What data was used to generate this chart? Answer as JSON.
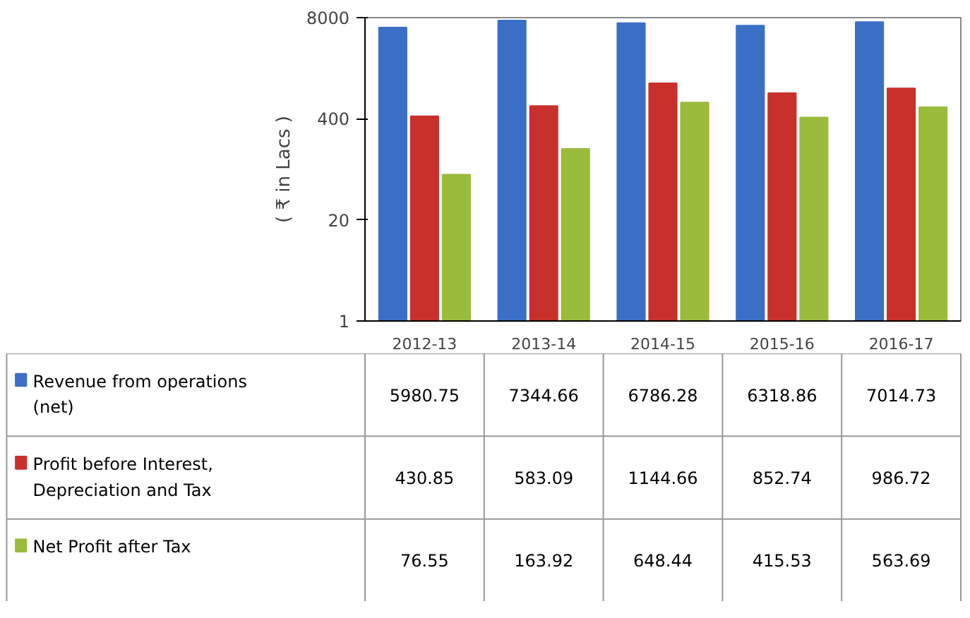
{
  "chart_data": {
    "type": "bar",
    "ylabel": "( ₹ in Lacs )",
    "log": true,
    "ylim": [
      1,
      8000
    ],
    "yticks": [
      1,
      20,
      400,
      8000
    ],
    "grid": false,
    "legend": "bottom",
    "categories": [
      "2012-13",
      "2013-14",
      "2014-15",
      "2015-16",
      "2016-17"
    ],
    "series": [
      {
        "name": "Revenue from operations (net)",
        "color": "#3b6fc6",
        "values": [
          5980.75,
          7344.66,
          6786.28,
          6318.86,
          7014.73
        ],
        "value_labels": [
          "5980.75",
          "7344.66",
          "6786.28",
          "6318.86",
          "7014.73"
        ]
      },
      {
        "name": "Profit before Interest, Depreciation and Tax",
        "color": "#c8302c",
        "values": [
          430.85,
          583.09,
          1144.66,
          852.74,
          986.72
        ],
        "value_labels": [
          "430.85",
          "583.09",
          "1144.66",
          "852.74",
          "986.72"
        ]
      },
      {
        "name": "Net Profit after Tax",
        "color": "#9bbb3c",
        "values": [
          76.55,
          163.92,
          648.44,
          415.53,
          563.69
        ],
        "value_labels": [
          "76.55",
          "163.92",
          "648.44",
          "415.53",
          "563.69"
        ]
      }
    ]
  }
}
